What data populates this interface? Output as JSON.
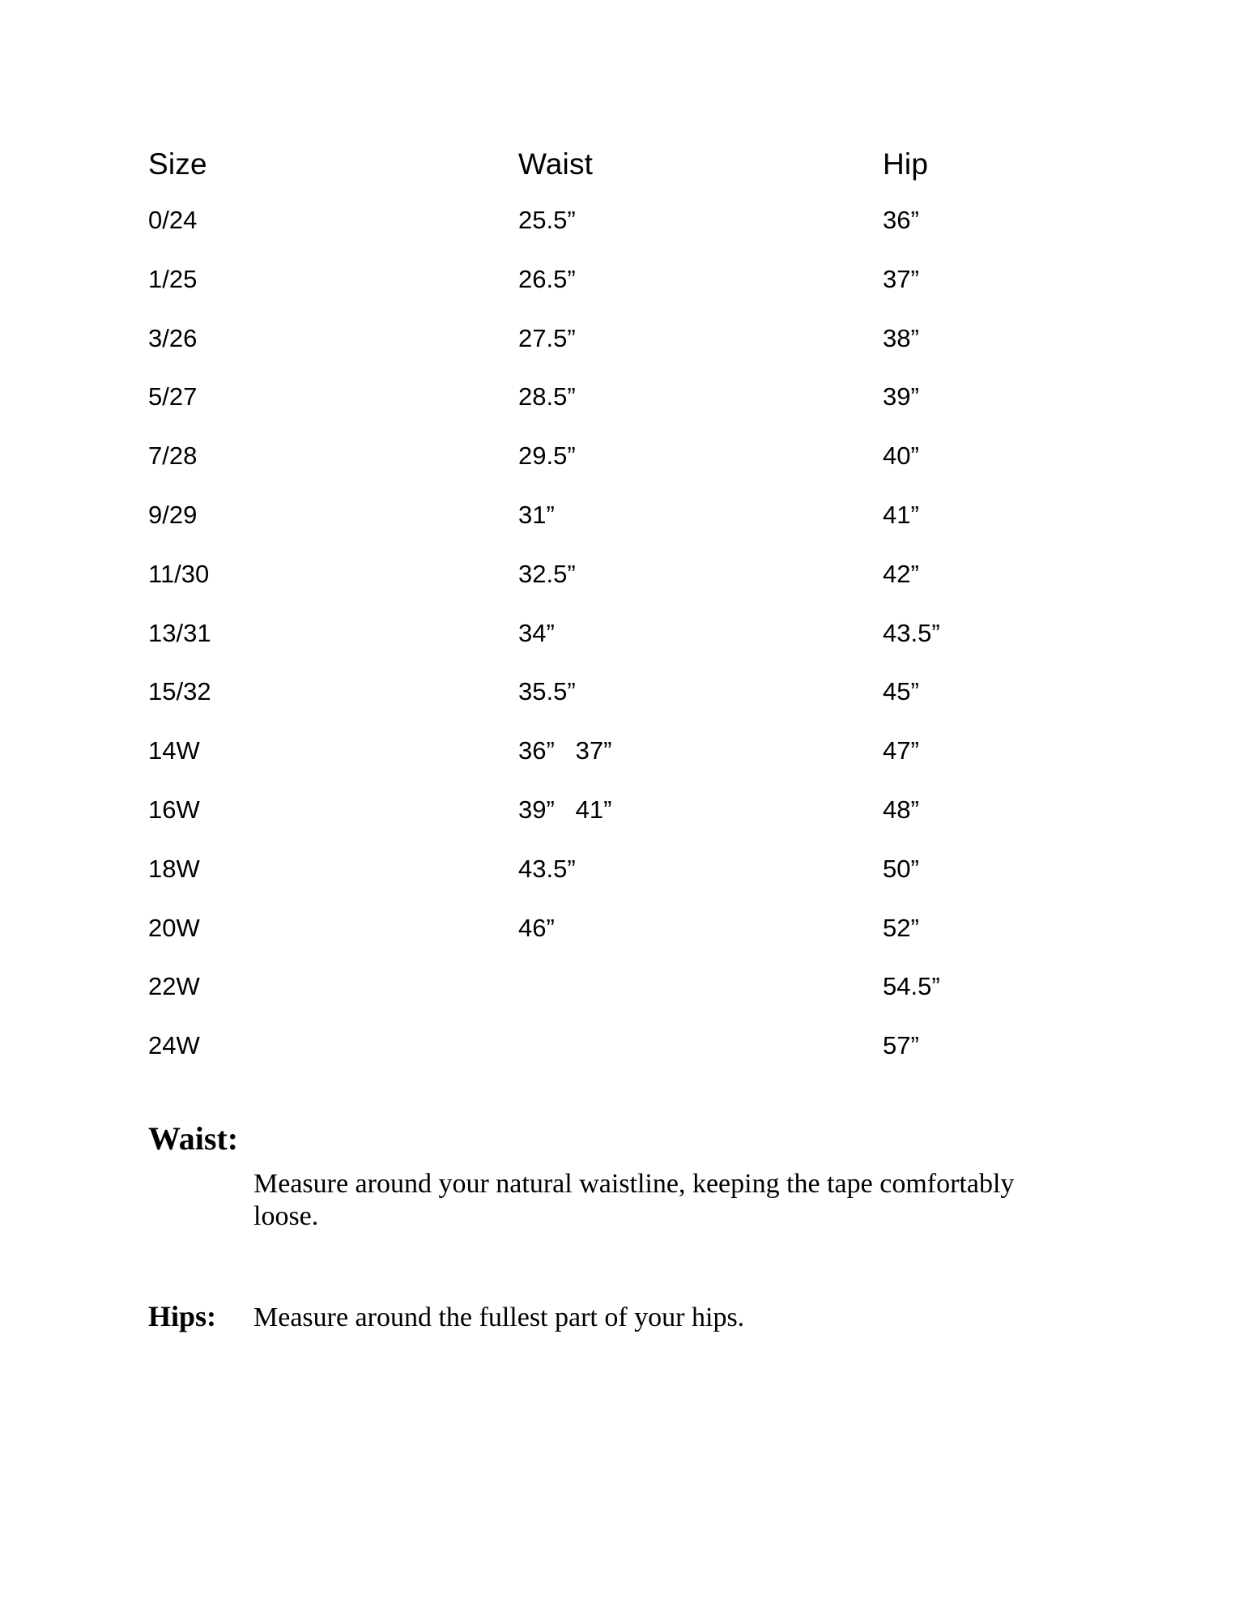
{
  "page": {
    "background_color": "#ffffff",
    "text_color": "#000000"
  },
  "table": {
    "headers": [
      "Size",
      "Waist",
      "Hip"
    ],
    "rows": [
      {
        "size": "0/24",
        "waist": "25.5”",
        "hip": "36”"
      },
      {
        "size": "1/25",
        "waist": "26.5”",
        "hip": "37”"
      },
      {
        "size": "3/26",
        "waist": "27.5”",
        "hip": "38”"
      },
      {
        "size": "5/27",
        "waist": "28.5”",
        "hip": "39”"
      },
      {
        "size": "7/28",
        "waist": "29.5”",
        "hip": "40”"
      },
      {
        "size": "9/29",
        "waist": "31”",
        "hip": "41”"
      },
      {
        "size": "11/30",
        "waist": "32.5”",
        "hip": "42”"
      },
      {
        "size": "13/31",
        "waist": "34”",
        "hip": "43.5”"
      },
      {
        "size": "15/32",
        "waist": "35.5”",
        "hip": "45”"
      },
      {
        "size": "14W",
        "waist": "36”   37”",
        "hip": "47”"
      },
      {
        "size": "16W",
        "waist": "39”   41”",
        "hip": "48”"
      },
      {
        "size": "18W",
        "waist": "43.5”",
        "hip": "50”"
      },
      {
        "size": "20W",
        "waist": "46”",
        "hip": "52”"
      },
      {
        "size": "22W",
        "waist": "",
        "hip": "54.5”"
      },
      {
        "size": "24W",
        "waist": "",
        "hip": "57”"
      }
    ]
  },
  "instructions": {
    "waist_label": "Waist:",
    "waist_lines": [
      "Measure around your natural waistline, keeping the tape comfortably",
      "loose."
    ],
    "hips_label": "Hips:",
    "hips_text": "Measure around the fullest part of your hips."
  }
}
